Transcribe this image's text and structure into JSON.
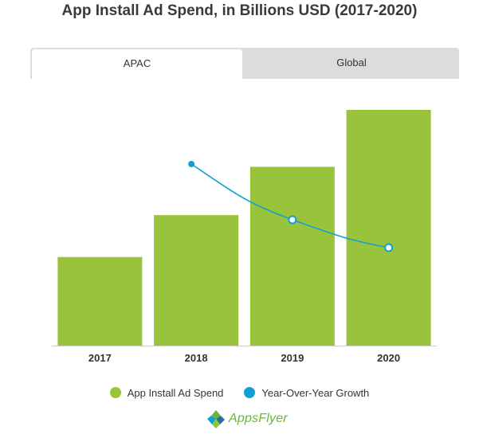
{
  "title": "App Install Ad Spend, in Billions USD (2017-2020)",
  "tabs": {
    "active": "APAC",
    "inactive": "Global"
  },
  "legend": {
    "spend_label": "App Install Ad Spend",
    "growth_label": "Year-Over-Year Growth"
  },
  "logo": {
    "text": "AppsFlyer",
    "brand_name": "AppsFlyer"
  },
  "colors": {
    "bar": "#99c33a",
    "line": "#12a0d2",
    "axis": "#cccccc",
    "tab_bg": "#dcdcdc"
  },
  "chart_data": {
    "type": "bar",
    "categories": [
      "2017",
      "2018",
      "2019",
      "2020"
    ],
    "series": [
      {
        "name": "App Install Ad Spend",
        "type": "bar",
        "values": [
          11.2,
          16.5,
          22.6,
          29.8
        ]
      },
      {
        "name": "Year-Over-Year Growth",
        "type": "line",
        "values": [
          null,
          47,
          37,
          32
        ]
      }
    ],
    "xlabel": "",
    "ylabel": "",
    "ylim": [
      0,
      30
    ],
    "grid": false,
    "legend_position": "bottom"
  }
}
